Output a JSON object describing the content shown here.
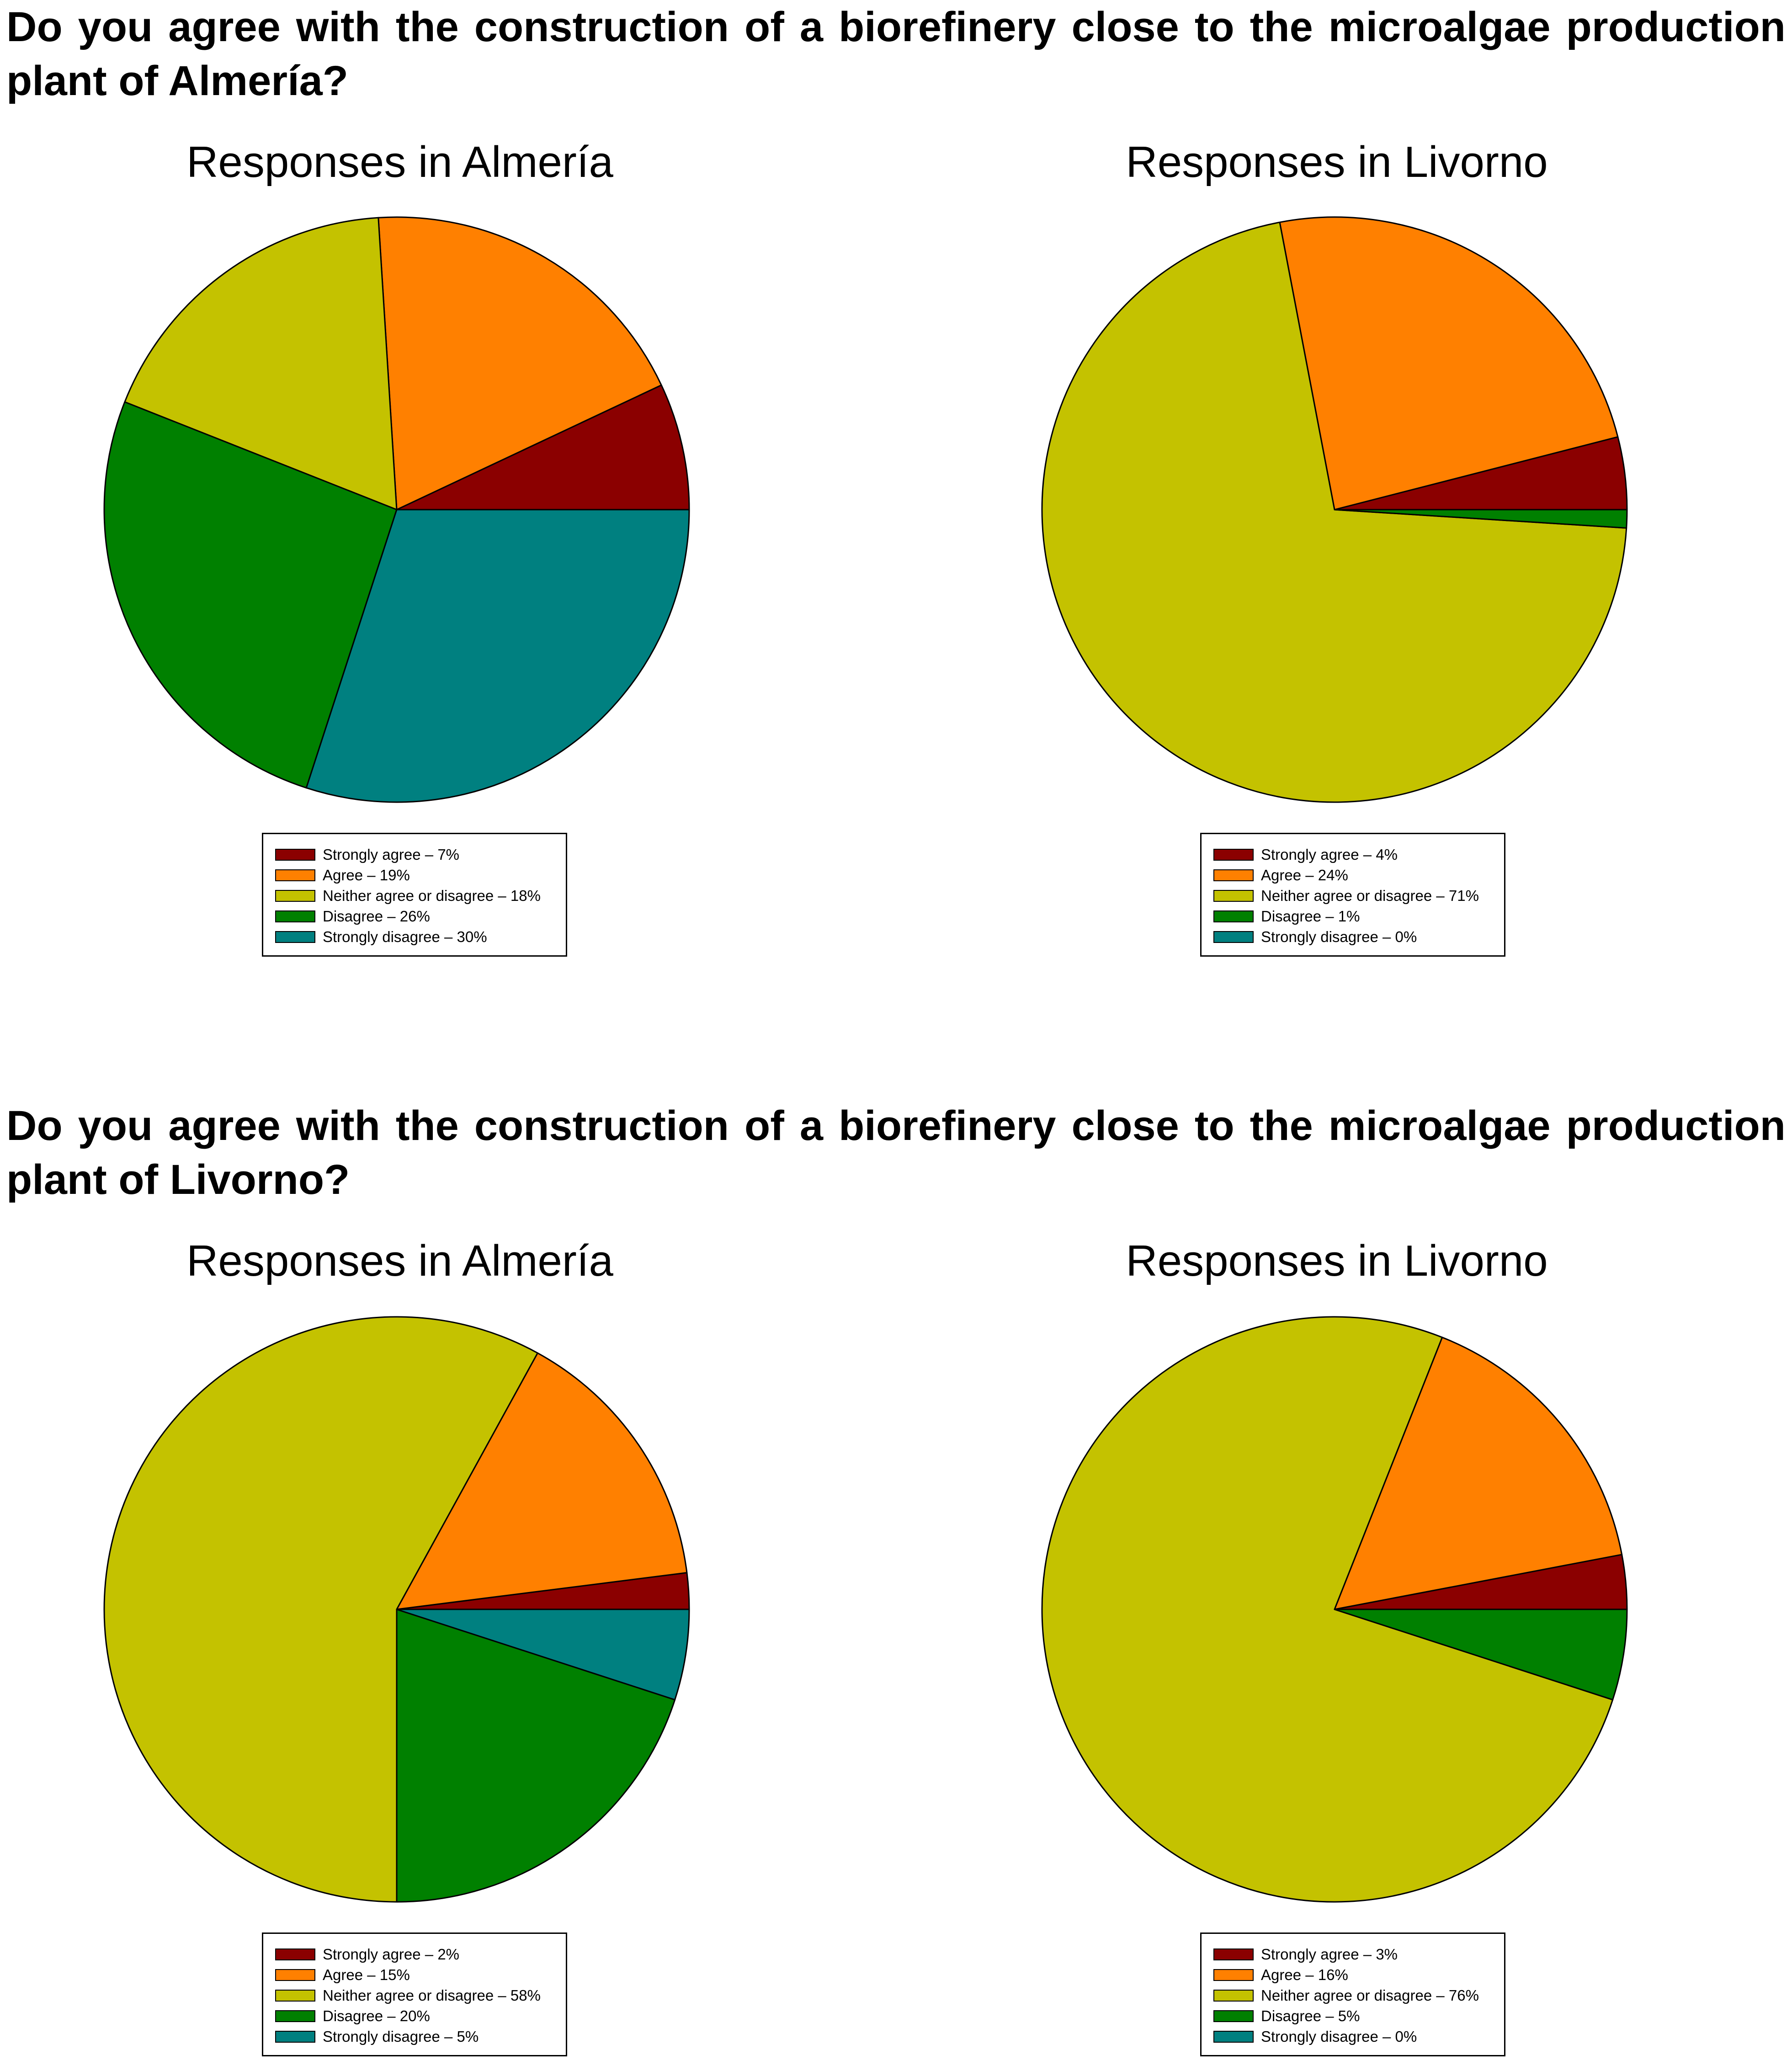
{
  "questions": [
    "Do you agree with the construction of a biorefinery close to the microalgae production plant of Almería?",
    "Do you agree with the construction of a biorefinery close to the microalgae production plant of Livorno?"
  ],
  "colors": {
    "strongly_agree": "#8b0000",
    "agree": "#ff8000",
    "neither": "#c4c200",
    "disagree": "#008000",
    "strongly_disagree": "#008080",
    "outline": "#000000"
  },
  "chart_data": [
    {
      "type": "pie",
      "question": 0,
      "title": "Responses in Almería",
      "categories": [
        "Strongly agree",
        "Agree",
        "Neither agree or disagree",
        "Disagree",
        "Strongly disagree"
      ],
      "values": [
        7,
        19,
        18,
        26,
        30
      ],
      "legend_labels": [
        "Strongly agree – 7%",
        "Agree – 19%",
        "Neither agree or disagree – 18%",
        "Disagree – 26%",
        "Strongly disagree – 30%"
      ],
      "legend_placement": "bottom"
    },
    {
      "type": "pie",
      "question": 0,
      "title": "Responses in Livorno",
      "categories": [
        "Strongly agree",
        "Agree",
        "Neither agree or disagree",
        "Disagree",
        "Strongly disagree"
      ],
      "values": [
        4,
        24,
        71,
        1,
        0
      ],
      "legend_labels": [
        "Strongly agree – 4%",
        "Agree – 24%",
        "Neither agree or disagree – 71%",
        "Disagree – 1%",
        "Strongly disagree – 0%"
      ],
      "legend_placement": "bottom"
    },
    {
      "type": "pie",
      "question": 1,
      "title": "Responses in Almería",
      "categories": [
        "Strongly agree",
        "Agree",
        "Neither agree or disagree",
        "Disagree",
        "Strongly disagree"
      ],
      "values": [
        2,
        15,
        58,
        20,
        5
      ],
      "legend_labels": [
        "Strongly agree – 2%",
        "Agree – 15%",
        "Neither agree or disagree – 58%",
        "Disagree – 20%",
        "Strongly disagree – 5%"
      ],
      "legend_placement": "bottom"
    },
    {
      "type": "pie",
      "question": 1,
      "title": "Responses in Livorno",
      "categories": [
        "Strongly agree",
        "Agree",
        "Neither agree or disagree",
        "Disagree",
        "Strongly disagree"
      ],
      "values": [
        3,
        16,
        76,
        5,
        0
      ],
      "legend_labels": [
        "Strongly agree – 3%",
        "Agree – 16%",
        "Neither agree or disagree – 76%",
        "Disagree – 5%",
        "Strongly disagree – 0%"
      ],
      "legend_placement": "bottom"
    }
  ]
}
